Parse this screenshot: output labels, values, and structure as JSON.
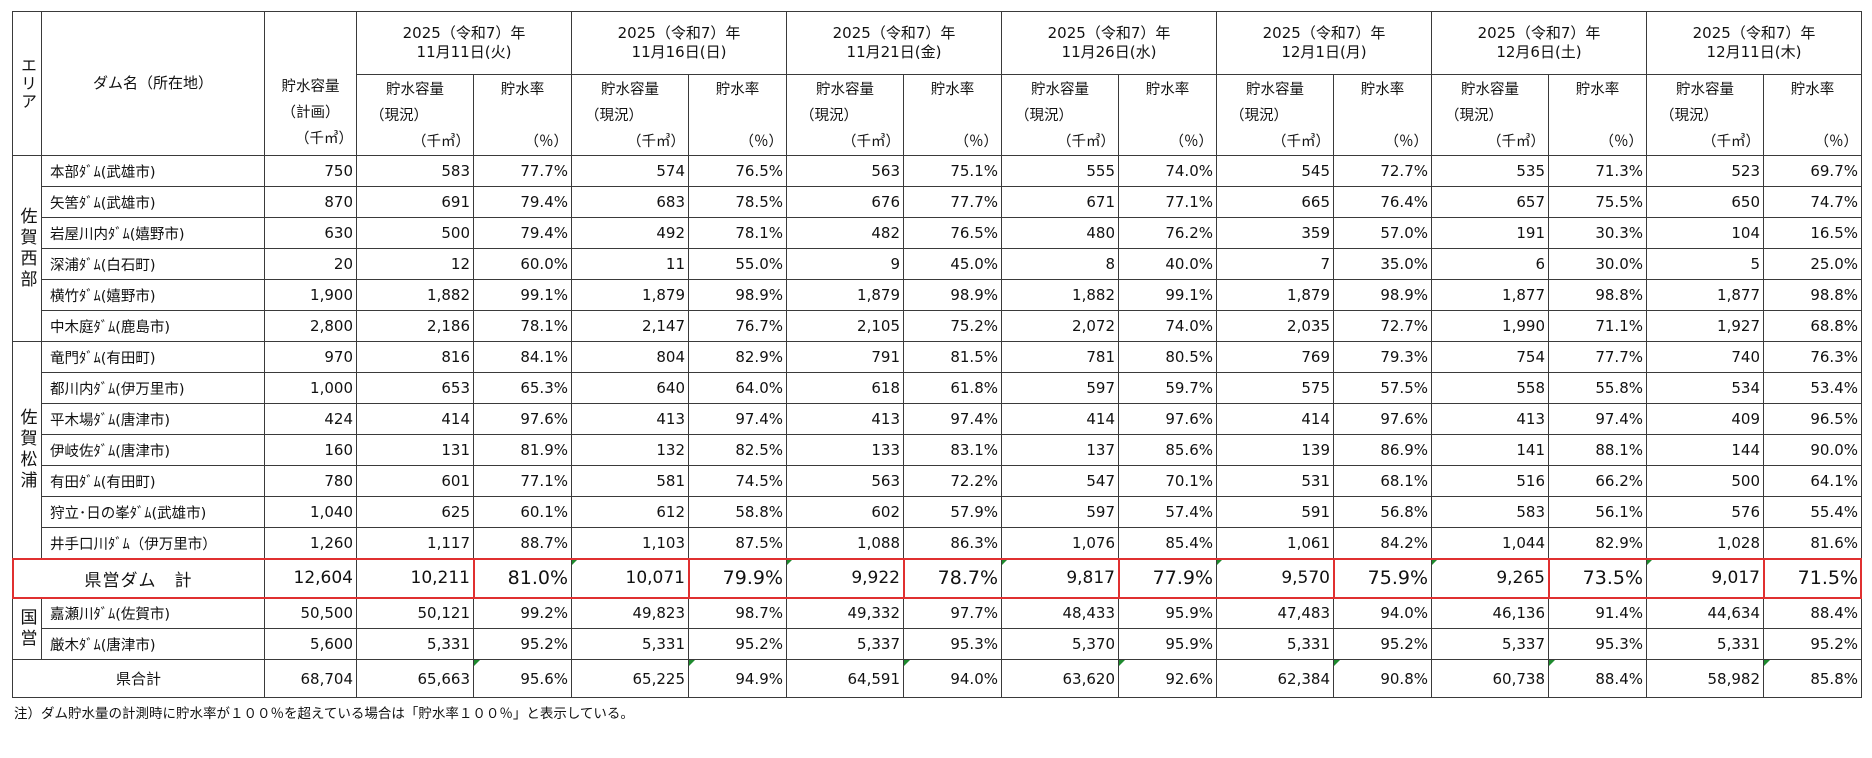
{
  "header": {
    "area_label": "エリア",
    "dam_label": "ダム名（所在地）",
    "capacity_plan": [
      "貯水容量",
      "（計画）",
      "（千㎥）"
    ],
    "capacity_now": [
      "貯水容量",
      "（現況）",
      "（千㎥）"
    ],
    "rate_label": "貯水率",
    "rate_unit": "（％）",
    "dates": [
      {
        "year": "2025（令和7）年",
        "day": "11月11日(火)"
      },
      {
        "year": "2025（令和7）年",
        "day": "11月16日(日)"
      },
      {
        "year": "2025（令和7）年",
        "day": "11月21日(金)"
      },
      {
        "year": "2025（令和7）年",
        "day": "11月26日(水)"
      },
      {
        "year": "2025（令和7）年",
        "day": "12月1日(月)"
      },
      {
        "year": "2025（令和7）年",
        "day": "12月6日(土)"
      },
      {
        "year": "2025（令和7）年",
        "day": "12月11日(木)"
      }
    ]
  },
  "groups": [
    {
      "area": "佐賀西部",
      "rows": [
        {
          "name": "本部ﾀﾞﾑ(武雄市)",
          "plan": "750",
          "vals": [
            [
              "583",
              "77.7%"
            ],
            [
              "574",
              "76.5%"
            ],
            [
              "563",
              "75.1%"
            ],
            [
              "555",
              "74.0%"
            ],
            [
              "545",
              "72.7%"
            ],
            [
              "535",
              "71.3%"
            ],
            [
              "523",
              "69.7%"
            ]
          ]
        },
        {
          "name": "矢筈ﾀﾞﾑ(武雄市)",
          "plan": "870",
          "vals": [
            [
              "691",
              "79.4%"
            ],
            [
              "683",
              "78.5%"
            ],
            [
              "676",
              "77.7%"
            ],
            [
              "671",
              "77.1%"
            ],
            [
              "665",
              "76.4%"
            ],
            [
              "657",
              "75.5%"
            ],
            [
              "650",
              "74.7%"
            ]
          ]
        },
        {
          "name": "岩屋川内ﾀﾞﾑ(嬉野市)",
          "plan": "630",
          "vals": [
            [
              "500",
              "79.4%"
            ],
            [
              "492",
              "78.1%"
            ],
            [
              "482",
              "76.5%"
            ],
            [
              "480",
              "76.2%"
            ],
            [
              "359",
              "57.0%"
            ],
            [
              "191",
              "30.3%"
            ],
            [
              "104",
              "16.5%"
            ]
          ]
        },
        {
          "name": "深浦ﾀﾞﾑ(白石町)",
          "plan": "20",
          "vals": [
            [
              "12",
              "60.0%"
            ],
            [
              "11",
              "55.0%"
            ],
            [
              "9",
              "45.0%"
            ],
            [
              "8",
              "40.0%"
            ],
            [
              "7",
              "35.0%"
            ],
            [
              "6",
              "30.0%"
            ],
            [
              "5",
              "25.0%"
            ]
          ]
        },
        {
          "name": "横竹ﾀﾞﾑ(嬉野市)",
          "plan": "1,900",
          "vals": [
            [
              "1,882",
              "99.1%"
            ],
            [
              "1,879",
              "98.9%"
            ],
            [
              "1,879",
              "98.9%"
            ],
            [
              "1,882",
              "99.1%"
            ],
            [
              "1,879",
              "98.9%"
            ],
            [
              "1,877",
              "98.8%"
            ],
            [
              "1,877",
              "98.8%"
            ]
          ]
        },
        {
          "name": "中木庭ﾀﾞﾑ(鹿島市)",
          "plan": "2,800",
          "vals": [
            [
              "2,186",
              "78.1%"
            ],
            [
              "2,147",
              "76.7%"
            ],
            [
              "2,105",
              "75.2%"
            ],
            [
              "2,072",
              "74.0%"
            ],
            [
              "2,035",
              "72.7%"
            ],
            [
              "1,990",
              "71.1%"
            ],
            [
              "1,927",
              "68.8%"
            ]
          ]
        }
      ]
    },
    {
      "area": "佐賀松浦",
      "rows": [
        {
          "name": "竜門ﾀﾞﾑ(有田町)",
          "plan": "970",
          "vals": [
            [
              "816",
              "84.1%"
            ],
            [
              "804",
              "82.9%"
            ],
            [
              "791",
              "81.5%"
            ],
            [
              "781",
              "80.5%"
            ],
            [
              "769",
              "79.3%"
            ],
            [
              "754",
              "77.7%"
            ],
            [
              "740",
              "76.3%"
            ]
          ]
        },
        {
          "name": "都川内ﾀﾞﾑ(伊万里市)",
          "plan": "1,000",
          "vals": [
            [
              "653",
              "65.3%"
            ],
            [
              "640",
              "64.0%"
            ],
            [
              "618",
              "61.8%"
            ],
            [
              "597",
              "59.7%"
            ],
            [
              "575",
              "57.5%"
            ],
            [
              "558",
              "55.8%"
            ],
            [
              "534",
              "53.4%"
            ]
          ]
        },
        {
          "name": "平木場ﾀﾞﾑ(唐津市)",
          "plan": "424",
          "vals": [
            [
              "414",
              "97.6%"
            ],
            [
              "413",
              "97.4%"
            ],
            [
              "413",
              "97.4%"
            ],
            [
              "414",
              "97.6%"
            ],
            [
              "414",
              "97.6%"
            ],
            [
              "413",
              "97.4%"
            ],
            [
              "409",
              "96.5%"
            ]
          ]
        },
        {
          "name": "伊岐佐ﾀﾞﾑ(唐津市)",
          "plan": "160",
          "vals": [
            [
              "131",
              "81.9%"
            ],
            [
              "132",
              "82.5%"
            ],
            [
              "133",
              "83.1%"
            ],
            [
              "137",
              "85.6%"
            ],
            [
              "139",
              "86.9%"
            ],
            [
              "141",
              "88.1%"
            ],
            [
              "144",
              "90.0%"
            ]
          ]
        },
        {
          "name": "有田ﾀﾞﾑ(有田町)",
          "plan": "780",
          "vals": [
            [
              "601",
              "77.1%"
            ],
            [
              "581",
              "74.5%"
            ],
            [
              "563",
              "72.2%"
            ],
            [
              "547",
              "70.1%"
            ],
            [
              "531",
              "68.1%"
            ],
            [
              "516",
              "66.2%"
            ],
            [
              "500",
              "64.1%"
            ]
          ]
        },
        {
          "name": "狩立･日の峯ﾀﾞﾑ(武雄市)",
          "plan": "1,040",
          "vals": [
            [
              "625",
              "60.1%"
            ],
            [
              "612",
              "58.8%"
            ],
            [
              "602",
              "57.9%"
            ],
            [
              "597",
              "57.4%"
            ],
            [
              "591",
              "56.8%"
            ],
            [
              "583",
              "56.1%"
            ],
            [
              "576",
              "55.4%"
            ]
          ]
        },
        {
          "name": "井手口川ﾀﾞﾑ（伊万里市）",
          "plan": "1,260",
          "vals": [
            [
              "1,117",
              "88.7%"
            ],
            [
              "1,103",
              "87.5%"
            ],
            [
              "1,088",
              "86.3%"
            ],
            [
              "1,076",
              "85.4%"
            ],
            [
              "1,061",
              "84.2%"
            ],
            [
              "1,044",
              "82.9%"
            ],
            [
              "1,028",
              "81.6%"
            ]
          ]
        }
      ]
    }
  ],
  "prefecture_total": {
    "label": "県営ダム　計",
    "plan": "12,604",
    "vals": [
      [
        "10,211",
        "81.0%"
      ],
      [
        "10,071",
        "79.9%"
      ],
      [
        "9,922",
        "78.7%"
      ],
      [
        "9,817",
        "77.9%"
      ],
      [
        "9,570",
        "75.9%"
      ],
      [
        "9,265",
        "73.5%"
      ],
      [
        "9,017",
        "71.5%"
      ]
    ]
  },
  "national": {
    "area": "国営",
    "rows": [
      {
        "name": "嘉瀬川ﾀﾞﾑ(佐賀市)",
        "plan": "50,500",
        "vals": [
          [
            "50,121",
            "99.2%"
          ],
          [
            "49,823",
            "98.7%"
          ],
          [
            "49,332",
            "97.7%"
          ],
          [
            "48,433",
            "95.9%"
          ],
          [
            "47,483",
            "94.0%"
          ],
          [
            "46,136",
            "91.4%"
          ],
          [
            "44,634",
            "88.4%"
          ]
        ]
      },
      {
        "name": "厳木ﾀﾞﾑ(唐津市)",
        "plan": "5,600",
        "vals": [
          [
            "5,331",
            "95.2%"
          ],
          [
            "5,331",
            "95.2%"
          ],
          [
            "5,337",
            "95.3%"
          ],
          [
            "5,370",
            "95.9%"
          ],
          [
            "5,331",
            "95.2%"
          ],
          [
            "5,337",
            "95.3%"
          ],
          [
            "5,331",
            "95.2%"
          ]
        ]
      }
    ]
  },
  "grand_total": {
    "label": "県合計",
    "plan": "68,704",
    "vals": [
      [
        "65,663",
        "95.6%"
      ],
      [
        "65,225",
        "94.9%"
      ],
      [
        "64,591",
        "94.0%"
      ],
      [
        "63,620",
        "92.6%"
      ],
      [
        "62,384",
        "90.8%"
      ],
      [
        "60,738",
        "88.4%"
      ],
      [
        "58,982",
        "85.8%"
      ]
    ]
  },
  "note": "注）ダム貯水量の計測時に貯水率が１００％を超えている場合は「貯水率１００％」と表示している。",
  "colors": {
    "highlight_border": "#e03030",
    "marker": "#1e8a2e",
    "grid": "#3a3a3a"
  }
}
